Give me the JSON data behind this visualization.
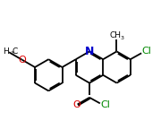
{
  "bg_color": "#ffffff",
  "bond_color": "#000000",
  "N_color": "#0000cc",
  "O_color": "#dd0000",
  "Cl_color": "#008800",
  "bond_lw": 1.3,
  "font_size": 6.5,
  "fig_width": 1.8,
  "fig_height": 1.54,
  "dpi": 100,
  "xlim": [
    0,
    9
  ],
  "ylim": [
    0,
    7.7
  ]
}
